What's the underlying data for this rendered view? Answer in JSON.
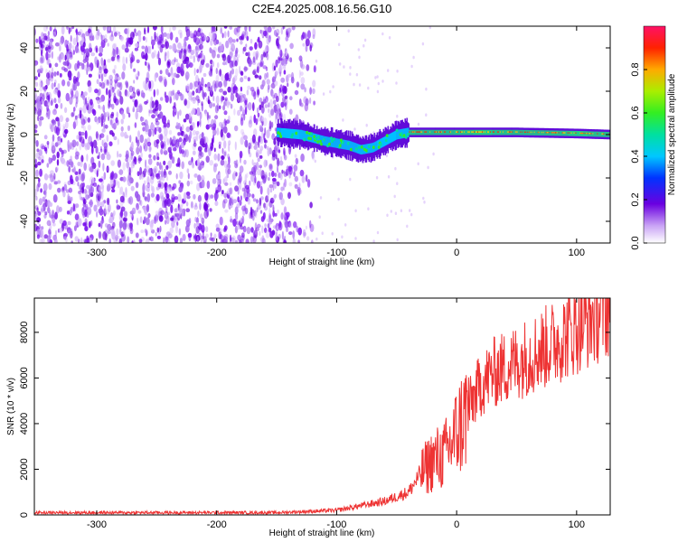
{
  "title": "C2E4.2025.008.16.56.G10",
  "chart_data": [
    {
      "type": "heatmap",
      "xlabel": "Height of straight line (km)",
      "ylabel": "Frequency (Hz)",
      "xlim": [
        -352,
        128
      ],
      "ylim": [
        -50,
        50
      ],
      "x_ticks": [
        -300,
        -200,
        -100,
        0,
        100
      ],
      "y_ticks": [
        -40,
        -20,
        0,
        20,
        40
      ],
      "colorbar": {
        "label": "Normalized spectral amplitude",
        "range": [
          0,
          1
        ],
        "ticks": [
          0.0,
          0.2,
          0.4,
          0.6,
          0.8
        ]
      },
      "regions": [
        {
          "x_range": [
            -352,
            -118
          ],
          "pattern": "noise spread over full frequency range"
        },
        {
          "x_range": [
            -150,
            -40
          ],
          "pattern": "signal band near 0 Hz with wander to -8 Hz"
        },
        {
          "x_range": [
            -40,
            128
          ],
          "pattern": "narrow signal band at about 1 Hz"
        }
      ],
      "carrier_track": {
        "x": [
          -150,
          -130,
          -110,
          -90,
          -80,
          -70,
          -60,
          -50,
          -40,
          -30,
          -20,
          0,
          50,
          100,
          128
        ],
        "frequency": [
          1,
          0,
          -3,
          -5,
          -7,
          -6,
          -3,
          0,
          1,
          1,
          1,
          1,
          1,
          0.5,
          0
        ]
      }
    },
    {
      "type": "line",
      "xlabel": "Height of straight line (km)",
      "ylabel": "SNR (10 * v/v)",
      "xlim": [
        -352,
        128
      ],
      "ylim": [
        0,
        9500
      ],
      "x_ticks": [
        -300,
        -200,
        -100,
        0,
        100
      ],
      "y_ticks": [
        0,
        2000,
        4000,
        6000,
        8000
      ],
      "grid": false,
      "color": "#ee3333",
      "envelope": {
        "x": [
          -352,
          -300,
          -200,
          -150,
          -100,
          -80,
          -60,
          -40,
          -30,
          -20,
          -10,
          0,
          10,
          20,
          30,
          50,
          80,
          100,
          128
        ],
        "y": [
          100,
          100,
          100,
          100,
          200,
          400,
          600,
          1000,
          1800,
          2400,
          2600,
          3600,
          4700,
          5700,
          6200,
          6700,
          7500,
          8200,
          9200
        ]
      }
    }
  ]
}
